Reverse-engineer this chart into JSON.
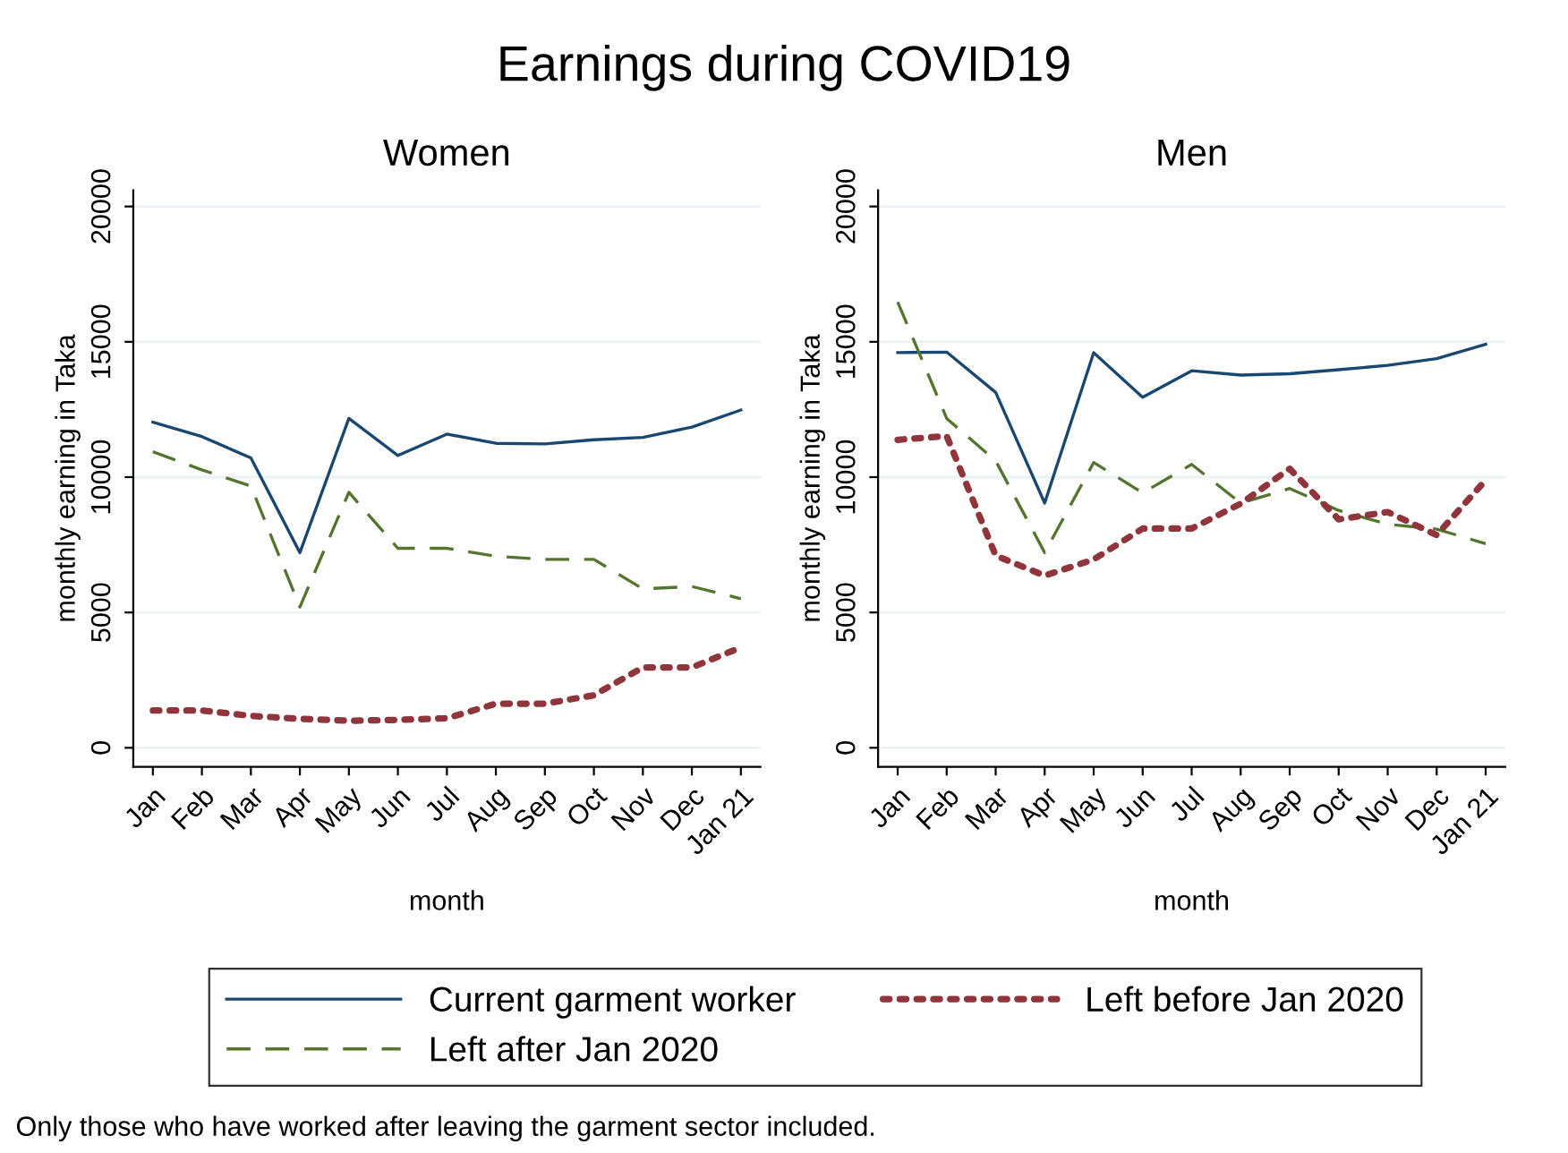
{
  "chart_data": [
    {
      "type": "line",
      "title": "Women",
      "xlabel": "month",
      "ylabel": "monthly earning in Taka",
      "categories": [
        "Jan",
        "Feb",
        "Mar",
        "Apr",
        "May",
        "Jun",
        "Jul",
        "Aug",
        "Sep",
        "Oct",
        "Nov",
        "Dec",
        "Jan 21"
      ],
      "series": [
        {
          "name": "Current garment worker",
          "color": "#1a476f",
          "line_style": "solid",
          "values": [
            12030,
            11500,
            10710,
            7210,
            12170,
            10800,
            11590,
            11250,
            11230,
            11380,
            11470,
            11850,
            12480
          ]
        },
        {
          "name": "Left after Jan 2020",
          "color": "#55752f",
          "line_style": "dashed",
          "values": [
            10940,
            10270,
            9670,
            5200,
            9440,
            7370,
            7370,
            7080,
            6960,
            6960,
            5870,
            5960,
            5510
          ]
        },
        {
          "name": "Left before Jan 2020",
          "color": "#90353b",
          "line_style": "dotted",
          "values": [
            1380,
            1380,
            1180,
            1070,
            1000,
            1030,
            1090,
            1630,
            1630,
            1940,
            2970,
            2970,
            3710
          ]
        }
      ],
      "ylim": [
        -700,
        20600
      ],
      "yticks": [
        0,
        5000,
        10000,
        15000,
        20000
      ],
      "grid": "y",
      "legend": "bottom",
      "annotations": [
        "Earnings during COVID19",
        "Only those who have worked after leaving the garment sector included."
      ]
    },
    {
      "type": "line",
      "title": "Men",
      "xlabel": "month",
      "ylabel": "monthly earning in Taka",
      "categories": [
        "Jan",
        "Feb",
        "Mar",
        "Apr",
        "May",
        "Jun",
        "Jul",
        "Aug",
        "Sep",
        "Oct",
        "Nov",
        "Dec",
        "Jan 21"
      ],
      "series": [
        {
          "name": "Current garment worker",
          "color": "#1a476f",
          "line_style": "solid",
          "values": [
            14600,
            14620,
            13130,
            9040,
            14600,
            12950,
            13930,
            13770,
            13820,
            13970,
            14130,
            14380,
            14910
          ]
        },
        {
          "name": "Left after Jan 2020",
          "color": "#55752f",
          "line_style": "dashed",
          "values": [
            16470,
            12170,
            10600,
            7210,
            10540,
            9420,
            10470,
            9040,
            9580,
            8770,
            8260,
            8080,
            7540
          ]
        },
        {
          "name": "Left before Jan 2020",
          "color": "#90353b",
          "line_style": "dotted",
          "values": [
            11380,
            11520,
            7100,
            6360,
            6960,
            8100,
            8100,
            9020,
            10310,
            8440,
            8710,
            7860,
            9890
          ]
        }
      ],
      "ylim": [
        -700,
        20600
      ],
      "yticks": [
        0,
        5000,
        10000,
        15000,
        20000
      ],
      "grid": "y",
      "legend": false
    }
  ]
}
